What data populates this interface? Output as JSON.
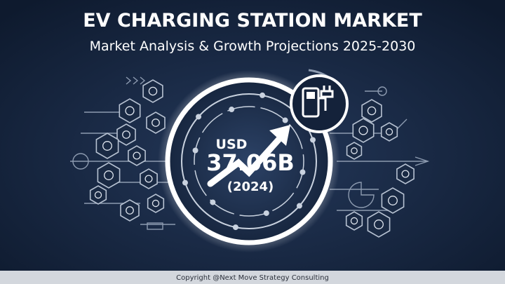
{
  "header": {
    "title": "EV CHARGING STATION MARKET",
    "subtitle": "Market Analysis & Growth Projections 2025-2030"
  },
  "center": {
    "currency": "USD",
    "value": "37.06B",
    "year": "(2024)"
  },
  "footer": {
    "copyright": "Copyright @Next Move Strategy Consulting"
  }
}
